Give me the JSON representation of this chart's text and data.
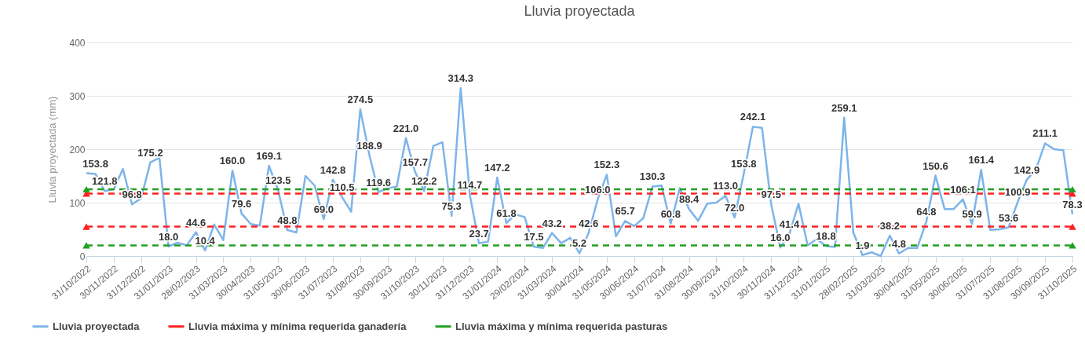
{
  "chart_data": {
    "type": "line",
    "title": "Lluvia proyectada",
    "ylabel": "Lluvia proyectada (mm)",
    "categories": [
      "31/10/2022",
      null,
      null,
      "30/11/2022",
      null,
      null,
      "31/12/2022",
      null,
      null,
      "31/01/2023",
      null,
      null,
      "28/02/2023",
      null,
      null,
      "31/03/2023",
      null,
      null,
      "30/04/2023",
      null,
      null,
      "31/05/2023",
      null,
      null,
      "30/06/2023",
      null,
      null,
      "31/07/2023",
      null,
      null,
      "31/08/2023",
      null,
      null,
      "30/09/2023",
      null,
      null,
      "31/10/2023",
      null,
      null,
      "30/11/2023",
      null,
      null,
      "31/12/2023",
      null,
      null,
      "31/01/2024",
      null,
      null,
      "29/02/2024",
      null,
      null,
      "31/03/2024",
      null,
      null,
      "30/04/2024",
      null,
      null,
      "31/05/2024",
      null,
      null,
      "30/06/2024",
      null,
      null,
      "31/07/2024",
      null,
      null,
      "31/08/2024",
      null,
      null,
      "30/09/2024",
      null,
      null,
      "31/10/2024",
      null,
      null,
      "30/11/2024",
      null,
      null,
      "31/12/2024",
      null,
      null,
      "31/01/2025",
      null,
      null,
      "28/02/2025",
      null,
      null,
      "31/03/2025",
      null,
      null,
      "30/04/2025",
      null,
      null,
      "31/05/2025",
      null,
      null,
      "30/06/2025",
      null,
      null,
      "31/07/2025",
      null,
      null,
      "31/08/2025",
      null,
      null,
      "30/09/2025",
      null,
      null,
      "31/10/2025"
    ],
    "series": [
      {
        "name": "Lluvia proyectada",
        "color": "#7db4ea",
        "marker": "none",
        "line_style": "solid",
        "values": [
          155,
          153.8,
          121.8,
          125,
          163,
          96.8,
          108,
          175.2,
          184,
          18.0,
          25,
          20,
          44.6,
          10.4,
          59,
          30,
          160.0,
          79.6,
          60,
          57,
          169.1,
          123.5,
          48.8,
          44,
          150,
          132,
          69.0,
          142.8,
          110.5,
          83,
          274.5,
          188.9,
          119.6,
          127,
          130,
          221.0,
          157.7,
          122.2,
          206,
          213,
          75.3,
          314.3,
          114.7,
          23.7,
          27,
          147.2,
          61.8,
          78,
          73,
          17.5,
          15,
          43.2,
          24,
          34,
          5.2,
          42.6,
          106.0,
          152.3,
          37,
          65.7,
          56,
          71,
          130.3,
          132,
          60.8,
          127,
          88.4,
          66,
          98,
          100,
          113.0,
          72.0,
          153.8,
          242.1,
          240,
          97.5,
          16.0,
          41.4,
          98,
          20,
          32,
          18.8,
          17,
          259.1,
          44,
          1.9,
          7,
          0,
          38.2,
          4.8,
          15,
          15,
          64.8,
          150.6,
          88,
          88,
          106.1,
          59.9,
          161.4,
          49,
          50,
          53.6,
          100.9,
          142.9,
          162,
          211.1,
          200,
          198,
          78.3
        ],
        "value_labels": [
          null,
          "153.8",
          "121.8",
          null,
          null,
          "96.8",
          null,
          "175.2",
          null,
          "18.0",
          null,
          null,
          "44.6",
          "10.4",
          null,
          null,
          "160.0",
          "79.6",
          null,
          null,
          "169.1",
          "123.5",
          "48.8",
          null,
          null,
          null,
          "69.0",
          "142.8",
          "110.5",
          null,
          "274.5",
          "188.9",
          "119.6",
          null,
          null,
          "221.0",
          "157.7",
          "122.2",
          null,
          null,
          "75.3",
          "314.3",
          "114.7",
          "23.7",
          null,
          "147.2",
          "61.8",
          null,
          null,
          "17.5",
          null,
          "43.2",
          null,
          null,
          "5.2",
          "42.6",
          "106.0",
          "152.3",
          null,
          "65.7",
          null,
          null,
          "130.3",
          null,
          "60.8",
          null,
          "88.4",
          null,
          null,
          null,
          "113.0",
          "72.0",
          "153.8",
          "242.1",
          null,
          "97.5",
          "16.0",
          "41.4",
          null,
          null,
          null,
          "18.8",
          null,
          "259.1",
          null,
          "1.9",
          null,
          null,
          "38.2",
          "4.8",
          null,
          null,
          "64.8",
          "150.6",
          null,
          null,
          "106.1",
          "59.9",
          "161.4",
          null,
          null,
          "53.6",
          "100.9",
          "142.9",
          null,
          "211.1",
          null,
          null,
          "78.3"
        ]
      },
      {
        "name": "Lluvia máxima y mínima requerida ganadería",
        "color": "#ff2020",
        "marker": "triangle",
        "line_style": "dashed",
        "x": [
          "31/10/2022",
          "31/10/2025"
        ],
        "values": [
          117,
          117
        ]
      },
      {
        "color": "#ff2020",
        "marker": "triangle",
        "line_style": "dashed",
        "x": [
          "31/10/2022",
          "31/10/2025"
        ],
        "values": [
          55,
          55
        ]
      },
      {
        "name": "Lluvia máxima y mínima requerida pasturas",
        "color": "#22a022",
        "marker": "triangle",
        "line_style": "dashed",
        "x": [
          "31/10/2022",
          "31/10/2025"
        ],
        "values": [
          125,
          125
        ]
      },
      {
        "color": "#22a022",
        "marker": "triangle",
        "line_style": "dashed",
        "x": [
          "31/10/2022",
          "31/10/2025"
        ],
        "values": [
          20,
          20
        ]
      }
    ],
    "ylim": [
      0,
      400
    ],
    "yticks": [
      0,
      100,
      200,
      300,
      400
    ],
    "grid": "y",
    "legend": "bottom"
  }
}
